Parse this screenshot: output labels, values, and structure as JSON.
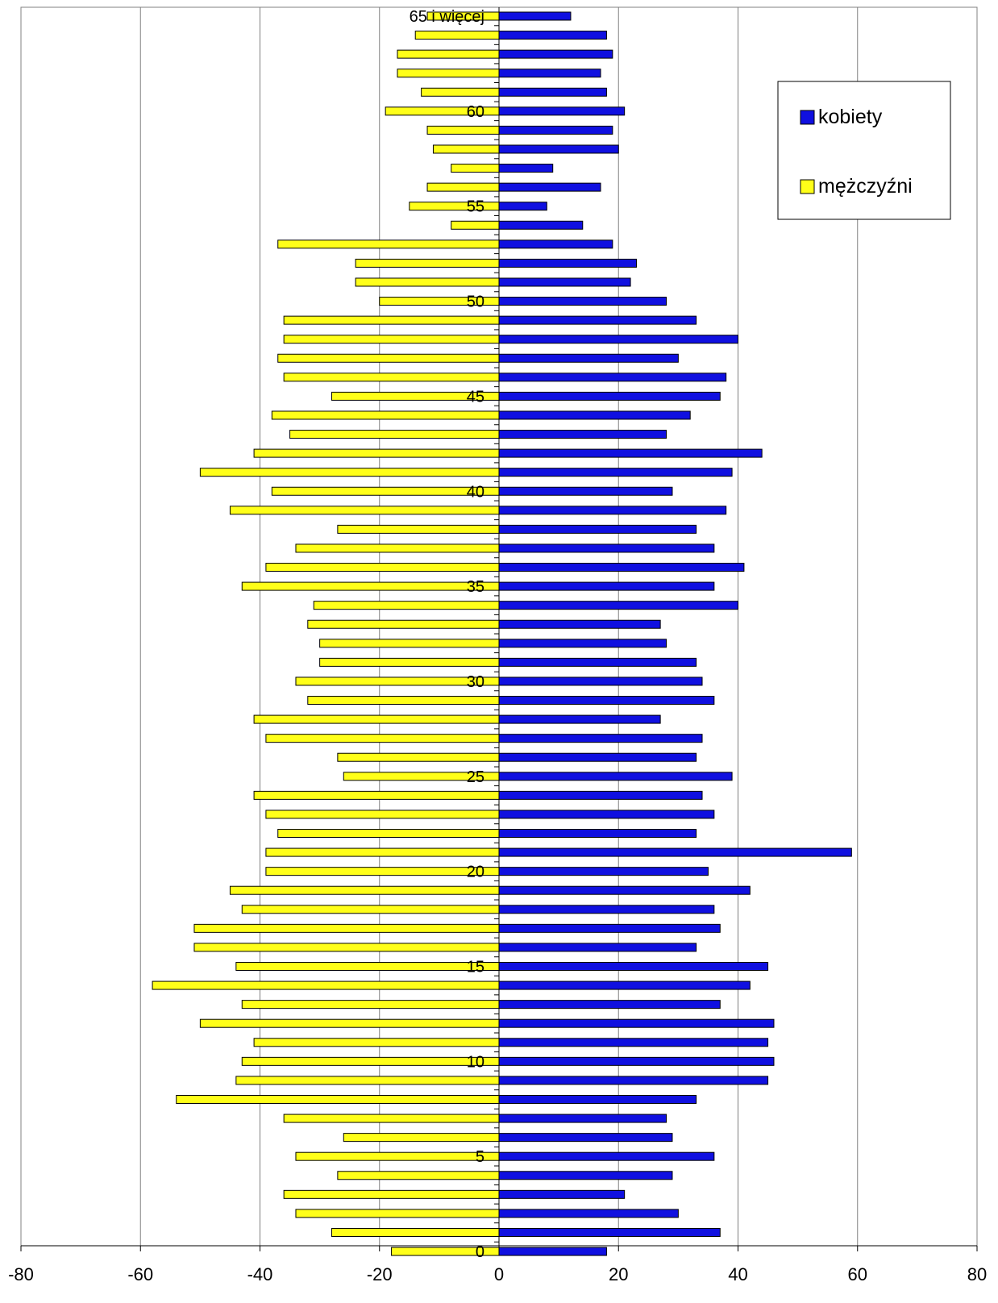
{
  "chart_data": {
    "type": "bar",
    "orientation": "horizontal",
    "title": "",
    "xlabel": "",
    "ylabel": "",
    "xlim": [
      -80,
      80
    ],
    "x_ticks": [
      -80,
      -60,
      -40,
      -20,
      0,
      20,
      40,
      60,
      80
    ],
    "grid": "vertical",
    "legend_position": "top-right",
    "y_labels": [
      {
        "age": 0,
        "text": "0"
      },
      {
        "age": 5,
        "text": "5"
      },
      {
        "age": 10,
        "text": "10"
      },
      {
        "age": 15,
        "text": "15"
      },
      {
        "age": 20,
        "text": "20"
      },
      {
        "age": 25,
        "text": "25"
      },
      {
        "age": 30,
        "text": "30"
      },
      {
        "age": 35,
        "text": "35"
      },
      {
        "age": 40,
        "text": "40"
      },
      {
        "age": 45,
        "text": "45"
      },
      {
        "age": 50,
        "text": "50"
      },
      {
        "age": 55,
        "text": "55"
      },
      {
        "age": 60,
        "text": "60"
      },
      {
        "age": 65,
        "text": "65 i więcej"
      }
    ],
    "categories": [
      0,
      1,
      2,
      3,
      4,
      5,
      6,
      7,
      8,
      9,
      10,
      11,
      12,
      13,
      14,
      15,
      16,
      17,
      18,
      19,
      20,
      21,
      22,
      23,
      24,
      25,
      26,
      27,
      28,
      29,
      30,
      31,
      32,
      33,
      34,
      35,
      36,
      37,
      38,
      39,
      40,
      41,
      42,
      43,
      44,
      45,
      46,
      47,
      48,
      49,
      50,
      51,
      52,
      53,
      54,
      55,
      56,
      57,
      58,
      59,
      60,
      61,
      62,
      63,
      64,
      65
    ],
    "series": [
      {
        "name": "kobiety",
        "color": "#1010e0",
        "values": [
          18,
          37,
          30,
          21,
          29,
          36,
          29,
          28,
          33,
          45,
          46,
          45,
          46,
          37,
          42,
          45,
          33,
          37,
          36,
          42,
          35,
          59,
          33,
          36,
          34,
          39,
          33,
          34,
          27,
          36,
          34,
          33,
          28,
          27,
          40,
          36,
          41,
          36,
          33,
          38,
          29,
          39,
          44,
          28,
          32,
          37,
          38,
          30,
          40,
          33,
          28,
          22,
          23,
          19,
          14,
          8,
          17,
          9,
          20,
          19,
          21,
          18,
          17,
          19,
          18,
          12
        ]
      },
      {
        "name": "mężczyźni",
        "color": "#ffff19",
        "values": [
          -18,
          -28,
          -34,
          -36,
          -27,
          -34,
          -26,
          -36,
          -54,
          -44,
          -43,
          -41,
          -50,
          -43,
          -58,
          -44,
          -51,
          -51,
          -43,
          -45,
          -39,
          -39,
          -37,
          -39,
          -41,
          -26,
          -27,
          -39,
          -41,
          -32,
          -34,
          -30,
          -30,
          -32,
          -31,
          -43,
          -39,
          -34,
          -27,
          -45,
          -38,
          -50,
          -41,
          -35,
          -38,
          -28,
          -36,
          -37,
          -36,
          -36,
          -20,
          -24,
          -24,
          -37,
          -8,
          -15,
          -12,
          -8,
          -11,
          -12,
          -19,
          -13,
          -17,
          -17,
          -14,
          -12
        ]
      }
    ]
  }
}
